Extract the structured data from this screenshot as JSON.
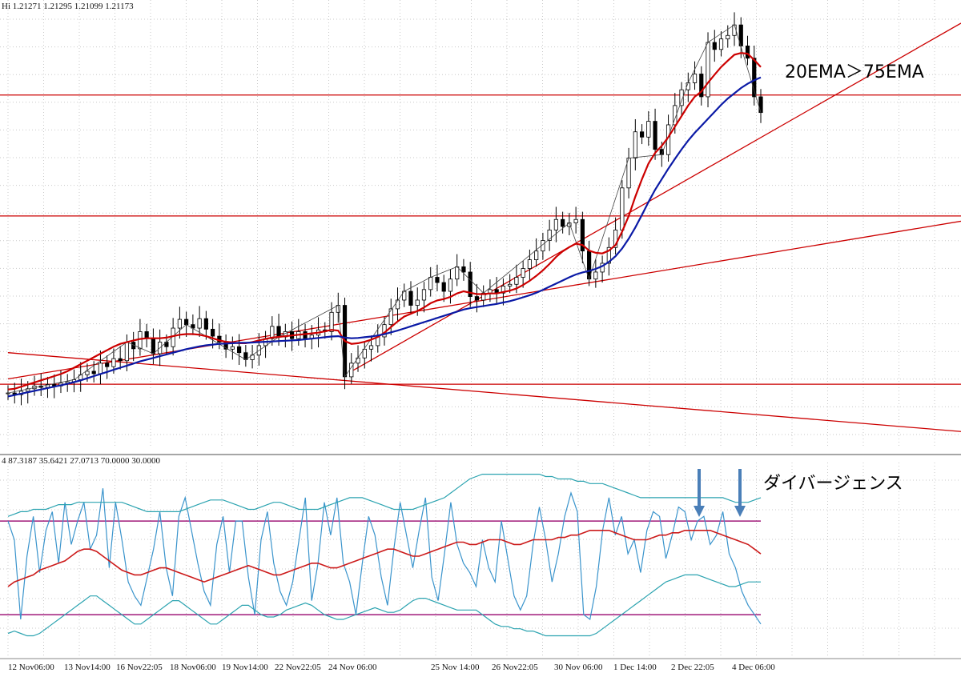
{
  "chart_data": [
    {
      "type": "candlestick",
      "header": "Hi 1.21271 1.21295 1.21099 1.21173",
      "annotation": "20EMA＞75EMA",
      "x_tick_labels": [
        "12 Nov06:00",
        "13 Nov14:00",
        "16 Nov22:05",
        "18 Nov06:00",
        "19 Nov14:00",
        "22 Nov22:05",
        "24 Nov 06:00",
        "25  Nov 14:00",
        "26  Nov22:05",
        "30 Nov 06:00",
        "1 Dec 14:00",
        "2 Dec 22:05",
        "4 Dec 06:00"
      ],
      "grid": true,
      "series": [
        {
          "type": "price",
          "color": "#000000",
          "values": [
            0.5,
            0.45,
            0.55,
            0.62,
            0.7,
            0.66,
            0.74,
            0.7,
            0.78,
            0.82,
            0.88,
            1.02,
            1.12,
            1.05,
            1.35,
            1.25,
            1.48,
            1.42,
            1.95,
            1.76,
            2.25,
            2.05,
            1.62,
            1.95,
            1.82,
            2.35,
            2.6,
            2.45,
            2.35,
            2.62,
            2.32,
            2.12,
            1.95,
            1.75,
            1.82,
            1.65,
            1.45,
            1.58,
            1.85,
            2.05,
            2.4,
            2.1,
            2.25,
            2.05,
            2.25,
            2.05,
            2.15,
            2.3,
            2.25,
            2.8,
            3.0,
            0.96,
            1.35,
            1.5,
            1.75,
            1.85,
            2.1,
            2.45,
            2.9,
            3.15,
            3.4,
            3.0,
            3.15,
            3.45,
            3.8,
            3.65,
            3.4,
            3.75,
            4.1,
            3.95,
            3.25,
            3.15,
            3.35,
            3.45,
            3.35,
            3.55,
            3.6,
            3.8,
            4.05,
            4.3,
            4.55,
            4.85,
            5.15,
            5.45,
            5.25,
            5.35,
            5.45,
            4.55,
            3.75,
            3.95,
            4.2,
            4.65,
            5.15,
            6.35,
            7.2,
            7.95,
            7.8,
            8.25,
            7.45,
            7.3,
            8.15,
            8.7,
            9.15,
            9.35,
            9.6,
            8.95,
            10.5,
            10.3,
            10.6,
            10.7,
            11.0,
            10.4,
            10.05,
            8.95,
            8.5
          ]
        },
        {
          "type": "ema",
          "name": "20EMA",
          "color": "#cc0000",
          "values": [
            0.6,
            0.62,
            0.68,
            0.74,
            0.8,
            0.86,
            0.92,
            0.98,
            1.04,
            1.12,
            1.22,
            1.32,
            1.42,
            1.52,
            1.62,
            1.72,
            1.82,
            1.9,
            1.95,
            2.0,
            2.04,
            2.06,
            2.06,
            2.06,
            2.08,
            2.12,
            2.16,
            2.18,
            2.18,
            2.16,
            2.12,
            2.06,
            2.0,
            1.96,
            1.94,
            1.92,
            1.92,
            1.95,
            2.0,
            2.04,
            2.08,
            2.1,
            2.12,
            2.14,
            2.16,
            2.18,
            2.2,
            2.22,
            2.26,
            2.3,
            2.28,
            1.98,
            1.9,
            1.92,
            1.96,
            2.02,
            2.1,
            2.22,
            2.38,
            2.54,
            2.68,
            2.76,
            2.84,
            2.94,
            3.06,
            3.14,
            3.18,
            3.24,
            3.34,
            3.4,
            3.36,
            3.32,
            3.32,
            3.34,
            3.34,
            3.38,
            3.42,
            3.48,
            3.58,
            3.7,
            3.84,
            4.0,
            4.18,
            4.38,
            4.54,
            4.66,
            4.76,
            4.72,
            4.56,
            4.5,
            4.48,
            4.56,
            4.72,
            5.1,
            5.55,
            6.1,
            6.6,
            7.05,
            7.35,
            7.55,
            7.8,
            8.1,
            8.4,
            8.7,
            8.95,
            9.1,
            9.35,
            9.58,
            9.8,
            9.98,
            10.15,
            10.2,
            10.18,
            10.0,
            9.8
          ]
        },
        {
          "type": "ema",
          "name": "75EMA",
          "color": "#0b1aa6",
          "values": [
            0.4,
            0.44,
            0.48,
            0.52,
            0.56,
            0.6,
            0.64,
            0.68,
            0.72,
            0.76,
            0.81,
            0.86,
            0.92,
            0.98,
            1.04,
            1.1,
            1.16,
            1.22,
            1.28,
            1.34,
            1.4,
            1.45,
            1.5,
            1.55,
            1.6,
            1.65,
            1.7,
            1.75,
            1.79,
            1.83,
            1.86,
            1.88,
            1.9,
            1.91,
            1.92,
            1.93,
            1.93,
            1.94,
            1.95,
            1.96,
            1.97,
            1.98,
            1.99,
            2.0,
            2.01,
            2.03,
            2.05,
            2.07,
            2.09,
            2.11,
            2.12,
            2.08,
            2.06,
            2.07,
            2.09,
            2.11,
            2.14,
            2.18,
            2.23,
            2.28,
            2.34,
            2.4,
            2.46,
            2.52,
            2.58,
            2.64,
            2.7,
            2.76,
            2.82,
            2.88,
            2.92,
            2.95,
            2.98,
            3.01,
            3.04,
            3.08,
            3.12,
            3.17,
            3.23,
            3.29,
            3.36,
            3.44,
            3.53,
            3.62,
            3.71,
            3.8,
            3.88,
            3.94,
            3.98,
            4.04,
            4.12,
            4.24,
            4.4,
            4.62,
            4.9,
            5.22,
            5.58,
            5.95,
            6.3,
            6.6,
            6.9,
            7.18,
            7.45,
            7.7,
            7.92,
            8.12,
            8.32,
            8.52,
            8.72,
            8.9,
            9.05,
            9.2,
            9.32,
            9.42,
            9.5
          ]
        },
        {
          "type": "horizontal_lines",
          "color": "#cc0000",
          "values": [
            9.0,
            5.55,
            0.75
          ]
        },
        {
          "type": "trendlines",
          "color": "#cc0000",
          "lines": [
            [
              [
                0,
                1.65
              ],
              [
                251,
                -0.6
              ]
            ],
            [
              [
                0,
                0.9
              ],
              [
                251,
                5.4
              ]
            ],
            [
              [
                91,
                1.15
              ],
              [
                251,
                11.05
              ]
            ]
          ]
        }
      ]
    },
    {
      "type": "line",
      "header": "4 87.3187 35.6421 27.0713 70.0000 30.0000",
      "annotation": "ダイバージェンス",
      "levels": [
        70,
        30
      ],
      "level_color": "#a0197a",
      "series": [
        {
          "type": "oscillator",
          "color": "#3a94cc",
          "values": [
            70,
            62,
            28,
            55,
            72,
            48,
            66,
            74,
            52,
            78,
            60,
            70,
            78,
            58,
            64,
            84,
            50,
            78,
            62,
            44,
            38,
            34,
            46,
            58,
            74,
            50,
            38,
            72,
            80,
            66,
            52,
            40,
            34,
            60,
            72,
            48,
            70,
            70,
            46,
            30,
            62,
            74,
            52,
            40,
            34,
            44,
            62,
            80,
            36,
            52,
            78,
            64,
            80,
            52,
            44,
            30,
            52,
            72,
            64,
            46,
            34,
            58,
            78,
            64,
            50,
            66,
            80,
            46,
            36,
            56,
            78,
            60,
            52,
            48,
            42,
            62,
            50,
            44,
            70,
            54,
            38,
            32,
            38,
            60,
            76,
            62,
            44,
            56,
            72,
            82,
            74,
            30,
            28,
            42,
            66,
            80,
            64,
            72,
            56,
            62,
            48,
            66,
            74,
            72,
            54,
            64,
            76,
            74,
            62,
            70,
            72,
            60,
            64,
            74,
            56,
            50,
            40,
            34,
            30,
            26
          ]
        },
        {
          "type": "ma",
          "color": "#cc1a1a",
          "values": [
            42,
            44,
            45,
            46,
            47,
            49,
            50,
            51,
            52,
            53,
            55,
            57,
            58,
            58,
            57,
            55,
            53,
            51,
            49,
            48,
            47,
            47,
            48,
            49,
            50,
            50,
            49,
            48,
            47,
            46,
            45,
            44,
            45,
            46,
            47,
            48,
            49,
            50,
            51,
            50,
            49,
            48,
            47,
            47,
            48,
            49,
            50,
            51,
            52,
            52,
            51,
            50,
            50,
            51,
            52,
            53,
            54,
            55,
            56,
            57,
            58,
            58,
            57,
            56,
            55,
            55,
            56,
            57,
            58,
            59,
            60,
            61,
            61,
            60,
            60,
            61,
            62,
            62,
            62,
            61,
            60,
            60,
            61,
            62,
            62,
            62,
            62,
            63,
            63,
            64,
            64,
            65,
            66,
            66,
            66,
            66,
            65,
            64,
            63,
            62,
            62,
            62,
            63,
            64,
            64,
            65,
            65,
            66,
            66,
            66,
            66,
            66,
            65,
            64,
            63,
            62,
            61,
            60,
            58,
            56
          ]
        },
        {
          "type": "band_upper",
          "color": "#2ba3b0",
          "values": [
            72,
            73,
            74,
            74,
            75,
            75,
            75,
            76,
            77,
            77,
            77,
            78,
            78,
            78,
            78,
            78,
            78,
            78,
            78,
            77,
            76,
            75,
            74,
            74,
            74,
            74,
            74,
            74,
            75,
            76,
            77,
            78,
            79,
            79,
            79,
            78,
            77,
            76,
            75,
            75,
            76,
            77,
            78,
            78,
            77,
            76,
            75,
            75,
            75,
            75,
            76,
            77,
            78,
            79,
            80,
            80,
            80,
            79,
            78,
            77,
            76,
            75,
            75,
            75,
            75,
            76,
            77,
            78,
            79,
            80,
            82,
            84,
            86,
            88,
            89,
            90,
            90,
            90,
            90,
            90,
            90,
            90,
            90,
            90,
            90,
            89,
            89,
            88,
            88,
            88,
            87,
            87,
            86,
            86,
            86,
            85,
            84,
            83,
            82,
            81,
            80,
            80,
            80,
            80,
            80,
            80,
            80,
            80,
            80,
            80,
            80,
            80,
            80,
            80,
            79,
            78,
            78,
            78,
            79,
            80
          ]
        },
        {
          "type": "band_lower",
          "color": "#2ba3b0",
          "values": [
            22,
            23,
            22,
            21,
            21,
            22,
            24,
            26,
            28,
            30,
            32,
            34,
            36,
            38,
            38,
            36,
            34,
            32,
            30,
            28,
            26,
            26,
            28,
            30,
            32,
            34,
            36,
            36,
            34,
            32,
            30,
            28,
            26,
            26,
            28,
            30,
            32,
            34,
            34,
            32,
            30,
            29,
            29,
            30,
            32,
            33,
            34,
            35,
            34,
            32,
            30,
            29,
            28,
            28,
            29,
            30,
            31,
            32,
            33,
            32,
            31,
            31,
            32,
            34,
            36,
            37,
            37,
            36,
            35,
            34,
            33,
            32,
            32,
            32,
            32,
            30,
            28,
            26,
            25,
            25,
            24,
            24,
            23,
            23,
            22,
            21,
            21,
            21,
            21,
            21,
            21,
            21,
            21,
            22,
            24,
            26,
            28,
            30,
            32,
            34,
            36,
            38,
            40,
            42,
            44,
            45,
            46,
            47,
            47,
            47,
            46,
            45,
            44,
            43,
            42,
            42,
            43,
            44,
            44,
            44
          ]
        }
      ]
    }
  ]
}
